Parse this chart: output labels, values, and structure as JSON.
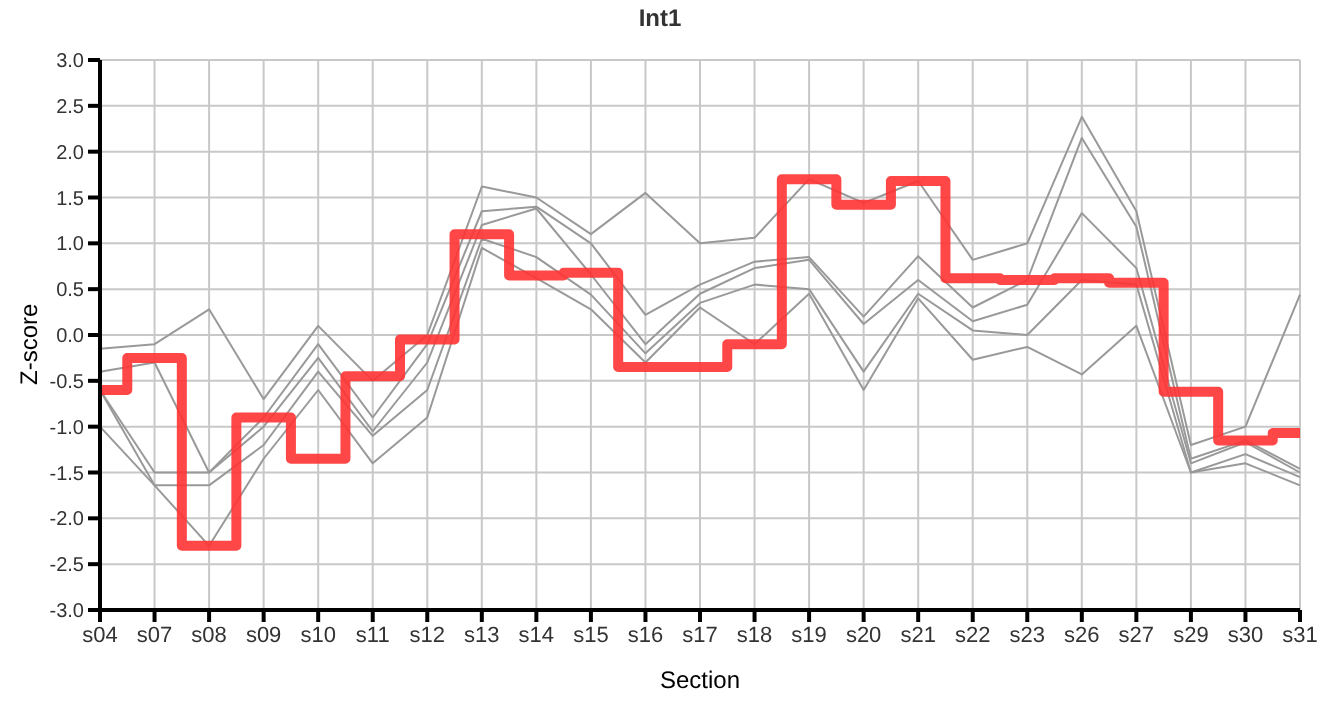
{
  "chart_data": {
    "type": "line",
    "title": "Int1",
    "xlabel": "Section",
    "ylabel": "Z-score",
    "categories": [
      "s04",
      "s07",
      "s08",
      "s09",
      "s10",
      "s11",
      "s12",
      "s13",
      "s14",
      "s15",
      "s16",
      "s17",
      "s18",
      "s19",
      "s20",
      "s21",
      "s22",
      "s23",
      "s26",
      "s27",
      "s29",
      "s30",
      "s31"
    ],
    "series": [
      {
        "color": "#999999",
        "values": [
          -0.15,
          -0.1,
          0.28,
          -0.7,
          0.1,
          -0.5,
          0.0,
          1.62,
          1.5,
          1.1,
          1.55,
          1.0,
          1.06,
          1.7,
          1.44,
          1.68,
          0.82,
          1.0,
          2.38,
          1.35,
          -1.2,
          -1.0,
          0.44
        ]
      },
      {
        "color": "#999999",
        "values": [
          -0.4,
          -0.3,
          -1.5,
          -0.9,
          -0.1,
          -0.9,
          -0.1,
          1.35,
          1.4,
          1.0,
          0.22,
          0.55,
          0.8,
          0.85,
          0.2,
          0.86,
          0.3,
          0.6,
          2.15,
          1.18,
          -1.35,
          -1.15,
          -1.46
        ]
      },
      {
        "color": "#999999",
        "values": [
          -0.6,
          -1.5,
          -1.5,
          -1.0,
          -0.25,
          -1.05,
          -0.3,
          1.2,
          1.38,
          0.66,
          -0.1,
          0.45,
          0.73,
          0.82,
          0.12,
          0.6,
          0.15,
          0.33,
          1.33,
          0.73,
          -1.4,
          -1.17,
          -1.5
        ]
      },
      {
        "color": "#999999",
        "values": [
          -0.6,
          -1.64,
          -1.64,
          -1.2,
          -0.4,
          -1.1,
          -0.6,
          1.05,
          0.85,
          0.44,
          -0.2,
          0.35,
          0.55,
          0.5,
          -0.4,
          0.45,
          0.05,
          0.0,
          0.6,
          0.55,
          -1.5,
          -1.3,
          -1.55
        ]
      },
      {
        "color": "#999999",
        "values": [
          -1.0,
          -1.64,
          -2.3,
          -1.35,
          -0.6,
          -1.4,
          -0.9,
          0.95,
          0.62,
          0.28,
          -0.3,
          0.3,
          -0.1,
          0.45,
          -0.6,
          0.4,
          -0.27,
          -0.13,
          -0.43,
          0.1,
          -1.5,
          -1.4,
          -1.64
        ]
      },
      {
        "type": "step",
        "color": "#ff3333",
        "values": [
          -0.6,
          -0.25,
          -2.3,
          -0.9,
          -1.35,
          -0.45,
          -0.05,
          1.1,
          0.65,
          0.68,
          -0.35,
          -0.35,
          -0.1,
          1.7,
          1.42,
          1.68,
          0.62,
          0.6,
          0.62,
          0.57,
          -0.62,
          -1.15,
          -1.07
        ]
      }
    ],
    "ylim": [
      -3,
      3
    ],
    "yticks": [
      {
        "value": -3,
        "label": "-3.0"
      },
      {
        "value": -2.5,
        "label": "-2.5"
      },
      {
        "value": -2,
        "label": "-2.0"
      },
      {
        "value": -1.5,
        "label": "-1.5"
      },
      {
        "value": -1,
        "label": "-1.0"
      },
      {
        "value": -0.5,
        "label": "-0.5"
      },
      {
        "value": 0,
        "label": "0.0"
      },
      {
        "value": 0.5,
        "label": "0.5"
      },
      {
        "value": 1,
        "label": "1.0"
      },
      {
        "value": 1.5,
        "label": "1.5"
      },
      {
        "value": 2,
        "label": "2.0"
      },
      {
        "value": 2.5,
        "label": "2.5"
      },
      {
        "value": 3,
        "label": "3.0"
      }
    ],
    "grid": true,
    "legend": false,
    "marker": "none",
    "line_style": "solid"
  }
}
